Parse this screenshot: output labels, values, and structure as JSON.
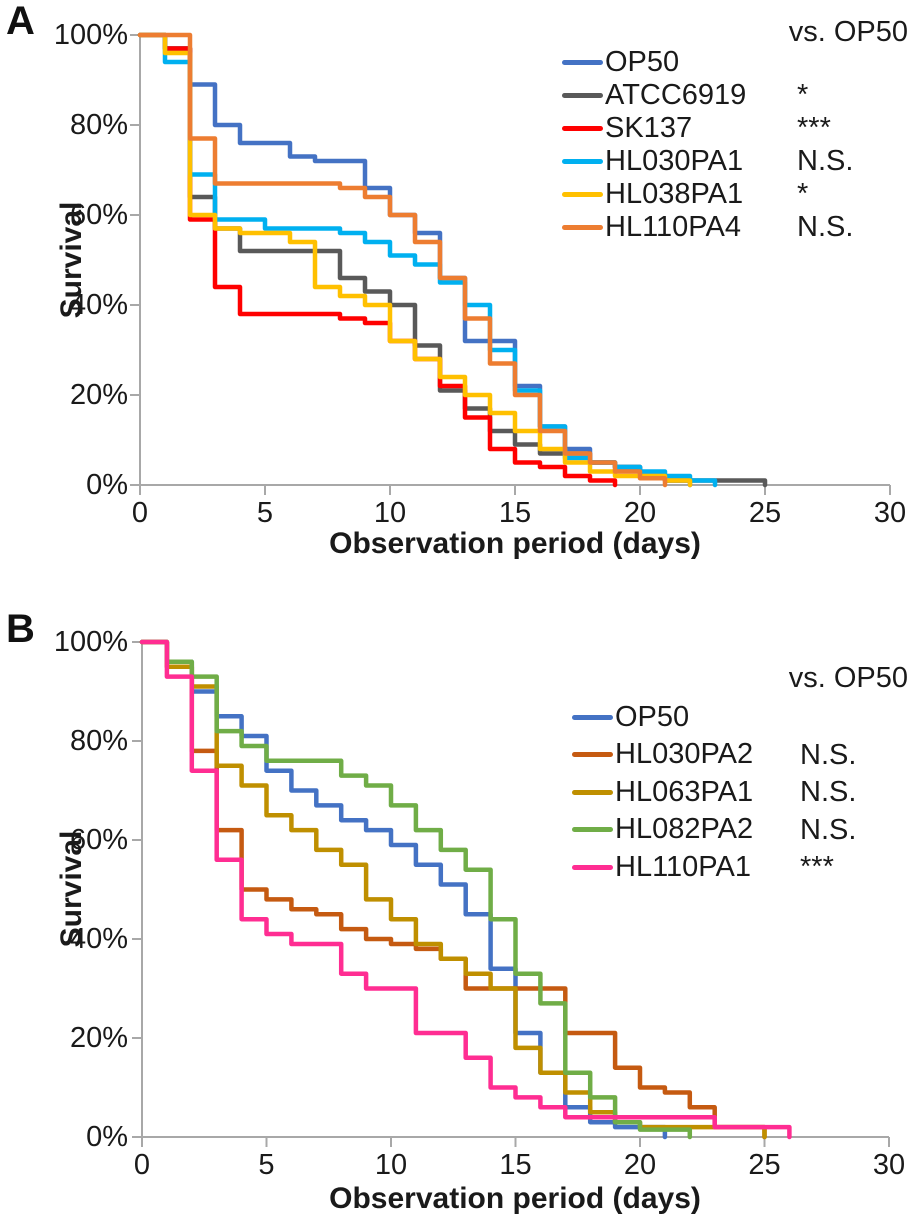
{
  "figure": {
    "background": "#ffffff",
    "axis_color": "#a8a8a8",
    "text_color": "#1a1a1a"
  },
  "chart_data": [
    {
      "type": "line",
      "subtype": "kaplan-meier-step-survival",
      "panel_label": "A",
      "legend_title": "vs. OP50",
      "xlabel": "Observation period (days)",
      "ylabel": "Survival",
      "xlim": [
        0,
        30
      ],
      "ylim": [
        0,
        100
      ],
      "x_ticks": [
        0,
        5,
        10,
        15,
        20,
        25,
        30
      ],
      "y_tick_labels": [
        "100%",
        "80%",
        "60%",
        "40%",
        "20%",
        "0%"
      ],
      "grid": false,
      "legend_position": "top-right-inside",
      "series": [
        {
          "name": "OP50",
          "color": "#4472C4",
          "significance_vs_op50": "",
          "points": [
            [
              0,
              100
            ],
            [
              1,
              97
            ],
            [
              2,
              89
            ],
            [
              3,
              80
            ],
            [
              4,
              76
            ],
            [
              6,
              73
            ],
            [
              7,
              72
            ],
            [
              9,
              66
            ],
            [
              10,
              60
            ],
            [
              11,
              56
            ],
            [
              12,
              46
            ],
            [
              13,
              32
            ],
            [
              15,
              22
            ],
            [
              16,
              13
            ],
            [
              17,
              8
            ],
            [
              18,
              5
            ],
            [
              19,
              4
            ],
            [
              20,
              2
            ],
            [
              21,
              1
            ],
            [
              22,
              0
            ]
          ]
        },
        {
          "name": "ATCC6919",
          "color": "#595959",
          "significance_vs_op50": "*",
          "points": [
            [
              0,
              100
            ],
            [
              1,
              97
            ],
            [
              2,
              64
            ],
            [
              3,
              57
            ],
            [
              4,
              52
            ],
            [
              8,
              46
            ],
            [
              9,
              43
            ],
            [
              10,
              40
            ],
            [
              11,
              31
            ],
            [
              12,
              21
            ],
            [
              13,
              17
            ],
            [
              14,
              12
            ],
            [
              15,
              9
            ],
            [
              16,
              7
            ],
            [
              18,
              5
            ],
            [
              19,
              4
            ],
            [
              20,
              2
            ],
            [
              21,
              1
            ],
            [
              25,
              0
            ]
          ]
        },
        {
          "name": "SK137",
          "color": "#FF0000",
          "significance_vs_op50": "***",
          "points": [
            [
              0,
              100
            ],
            [
              1,
              97
            ],
            [
              2,
              59
            ],
            [
              3,
              44
            ],
            [
              4,
              38
            ],
            [
              8,
              37
            ],
            [
              9,
              36
            ],
            [
              10,
              32
            ],
            [
              11,
              28
            ],
            [
              12,
              22
            ],
            [
              13,
              15
            ],
            [
              14,
              8
            ],
            [
              15,
              5
            ],
            [
              16,
              4
            ],
            [
              17,
              2
            ],
            [
              18,
              1
            ],
            [
              19,
              0
            ]
          ]
        },
        {
          "name": "HL030PA1",
          "color": "#00B0F0",
          "significance_vs_op50": "N.S.",
          "points": [
            [
              0,
              100
            ],
            [
              1,
              94
            ],
            [
              2,
              69
            ],
            [
              3,
              59
            ],
            [
              5,
              57
            ],
            [
              8,
              56
            ],
            [
              9,
              54
            ],
            [
              10,
              51
            ],
            [
              11,
              49
            ],
            [
              12,
              45
            ],
            [
              13,
              40
            ],
            [
              14,
              30
            ],
            [
              15,
              21
            ],
            [
              16,
              13
            ],
            [
              17,
              6
            ],
            [
              18,
              5
            ],
            [
              19,
              4
            ],
            [
              20,
              3
            ],
            [
              21,
              2
            ],
            [
              22,
              1
            ],
            [
              23,
              0
            ]
          ]
        },
        {
          "name": "HL038PA1",
          "color": "#FFC000",
          "significance_vs_op50": "*",
          "points": [
            [
              0,
              100
            ],
            [
              1,
              96
            ],
            [
              2,
              60
            ],
            [
              3,
              57
            ],
            [
              4,
              56
            ],
            [
              6,
              54
            ],
            [
              7,
              44
            ],
            [
              8,
              42
            ],
            [
              9,
              40
            ],
            [
              10,
              32
            ],
            [
              11,
              28
            ],
            [
              12,
              24
            ],
            [
              13,
              20
            ],
            [
              14,
              16
            ],
            [
              15,
              12
            ],
            [
              16,
              8
            ],
            [
              17,
              5
            ],
            [
              18,
              3
            ],
            [
              19,
              2
            ],
            [
              21,
              1
            ],
            [
              22,
              0
            ]
          ]
        },
        {
          "name": "HL110PA4",
          "color": "#ED7D31",
          "significance_vs_op50": "N.S.",
          "points": [
            [
              0,
              100
            ],
            [
              2,
              77
            ],
            [
              3,
              67
            ],
            [
              8,
              66
            ],
            [
              9,
              64
            ],
            [
              10,
              60
            ],
            [
              11,
              54
            ],
            [
              12,
              46
            ],
            [
              13,
              37
            ],
            [
              14,
              27
            ],
            [
              15,
              20
            ],
            [
              16,
              12
            ],
            [
              17,
              7
            ],
            [
              18,
              5
            ],
            [
              19,
              3
            ],
            [
              20,
              1.5
            ],
            [
              21,
              0
            ]
          ]
        }
      ]
    },
    {
      "type": "line",
      "subtype": "kaplan-meier-step-survival",
      "panel_label": "B",
      "legend_title": "vs. OP50",
      "xlabel": "Observation period (days)",
      "ylabel": "Survival",
      "xlim": [
        0,
        30
      ],
      "ylim": [
        0,
        100
      ],
      "x_ticks": [
        0,
        5,
        10,
        15,
        20,
        25,
        30
      ],
      "y_tick_labels": [
        "100%",
        "80%",
        "60%",
        "40%",
        "20%",
        "0%"
      ],
      "grid": false,
      "legend_position": "top-right-inside",
      "series": [
        {
          "name": "OP50",
          "color": "#4472C4",
          "significance_vs_op50": "",
          "points": [
            [
              0,
              100
            ],
            [
              1,
              96
            ],
            [
              2,
              90
            ],
            [
              3,
              85
            ],
            [
              4,
              81
            ],
            [
              5,
              74
            ],
            [
              6,
              70
            ],
            [
              7,
              67
            ],
            [
              8,
              64
            ],
            [
              9,
              62
            ],
            [
              10,
              59
            ],
            [
              11,
              55
            ],
            [
              12,
              51
            ],
            [
              13,
              45
            ],
            [
              14,
              34
            ],
            [
              15,
              21
            ],
            [
              16,
              13
            ],
            [
              17,
              6
            ],
            [
              18,
              3
            ],
            [
              19,
              2
            ],
            [
              21,
              0
            ]
          ]
        },
        {
          "name": "HL030PA2",
          "color": "#C55A11",
          "significance_vs_op50": "N.S.",
          "points": [
            [
              0,
              100
            ],
            [
              1,
              95
            ],
            [
              2,
              78
            ],
            [
              3,
              62
            ],
            [
              4,
              50
            ],
            [
              5,
              48
            ],
            [
              6,
              46
            ],
            [
              7,
              45
            ],
            [
              8,
              42
            ],
            [
              9,
              40
            ],
            [
              10,
              39
            ],
            [
              11,
              38
            ],
            [
              12,
              36
            ],
            [
              13,
              30
            ],
            [
              17,
              21
            ],
            [
              19,
              14
            ],
            [
              20,
              10
            ],
            [
              21,
              9
            ],
            [
              22,
              6
            ],
            [
              23,
              2
            ],
            [
              25,
              0
            ]
          ]
        },
        {
          "name": "HL063PA1",
          "color": "#BF8F00",
          "significance_vs_op50": "N.S.",
          "points": [
            [
              0,
              100
            ],
            [
              1,
              95
            ],
            [
              2,
              91
            ],
            [
              3,
              75
            ],
            [
              4,
              71
            ],
            [
              5,
              65
            ],
            [
              6,
              62
            ],
            [
              7,
              58
            ],
            [
              8,
              55
            ],
            [
              9,
              48
            ],
            [
              10,
              44
            ],
            [
              11,
              39
            ],
            [
              12,
              36
            ],
            [
              13,
              33
            ],
            [
              14,
              30
            ],
            [
              15,
              18
            ],
            [
              16,
              13
            ],
            [
              17,
              9
            ],
            [
              18,
              5
            ],
            [
              19,
              3
            ],
            [
              20,
              2
            ],
            [
              25,
              0
            ]
          ]
        },
        {
          "name": "HL082PA2",
          "color": "#70AD47",
          "significance_vs_op50": "N.S.",
          "points": [
            [
              0,
              100
            ],
            [
              1,
              96
            ],
            [
              2,
              93
            ],
            [
              3,
              82
            ],
            [
              4,
              79
            ],
            [
              5,
              76
            ],
            [
              8,
              73
            ],
            [
              9,
              71
            ],
            [
              10,
              67
            ],
            [
              11,
              62
            ],
            [
              12,
              58
            ],
            [
              13,
              54
            ],
            [
              14,
              44
            ],
            [
              15,
              33
            ],
            [
              16,
              27
            ],
            [
              17,
              13
            ],
            [
              18,
              8
            ],
            [
              19,
              3
            ],
            [
              20,
              1.5
            ],
            [
              22,
              0
            ]
          ]
        },
        {
          "name": "HL110PA1",
          "color": "#FF2D92",
          "significance_vs_op50": "***",
          "points": [
            [
              0,
              100
            ],
            [
              1,
              93
            ],
            [
              2,
              74
            ],
            [
              3,
              56
            ],
            [
              4,
              44
            ],
            [
              5,
              41
            ],
            [
              6,
              39
            ],
            [
              8,
              33
            ],
            [
              9,
              30
            ],
            [
              11,
              21
            ],
            [
              13,
              16
            ],
            [
              14,
              10
            ],
            [
              15,
              8
            ],
            [
              16,
              6
            ],
            [
              17,
              4
            ],
            [
              23,
              2
            ],
            [
              26,
              0
            ]
          ]
        }
      ]
    }
  ]
}
